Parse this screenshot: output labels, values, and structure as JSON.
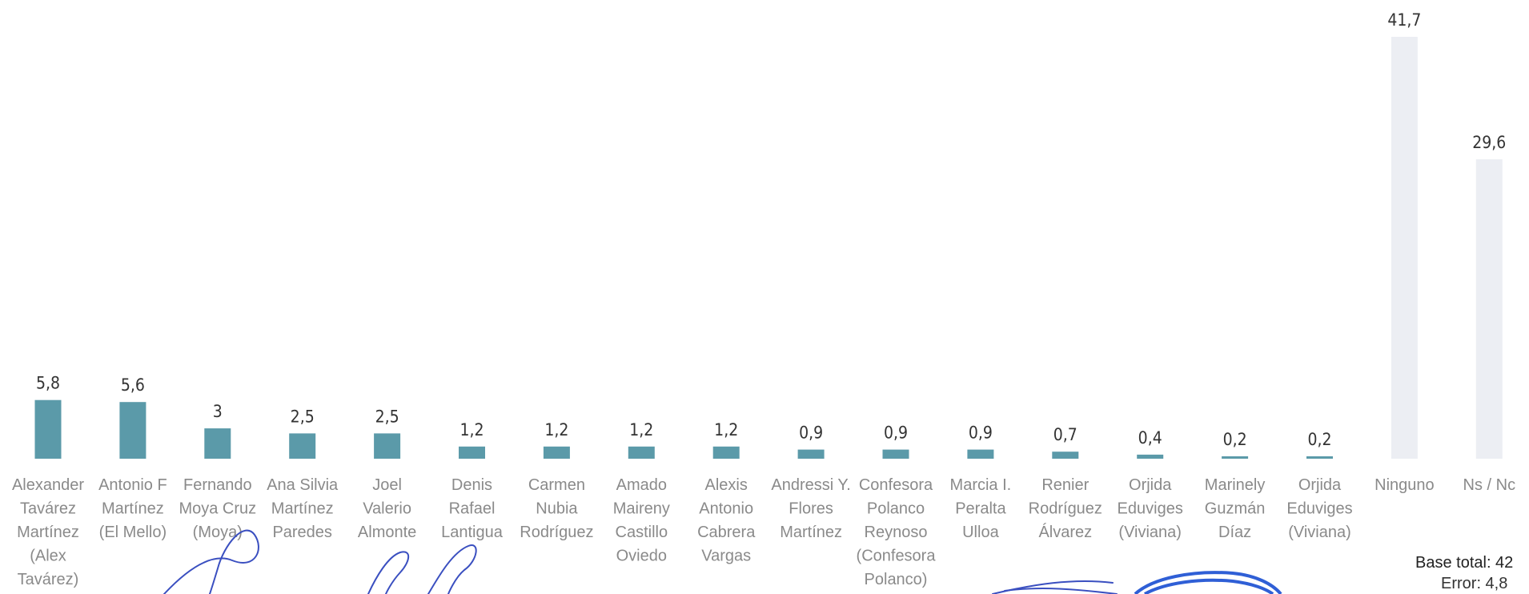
{
  "chart_data": {
    "type": "bar",
    "categories": [
      "Alexander Tavárez Martínez (Alex Tavárez)",
      "Antonio F Martínez (El Mello)",
      "Fernando Moya Cruz (Moya)",
      "Ana Silvia Martínez Paredes",
      "Joel Valerio Almonte",
      "Denis Rafael Lantigua",
      "Carmen Nubia Rodríguez",
      "Amado Maireny Castillo Oviedo",
      "Alexis Antonio Cabrera Vargas",
      "Andressi Y. Flores Martínez",
      "Confesora Polanco Reynoso (Confesora Polanco)",
      "Marcia I. Peralta Ulloa",
      "Renier Rodríguez Álvarez",
      "Orjida Eduviges (Viviana)",
      "Marinely Guzmán Díaz",
      "Orjida Eduviges (Viviana)",
      "Ninguno",
      "Ns / Nc"
    ],
    "category_lines": [
      [
        "Alexander",
        "Tavárez",
        "Martínez",
        "(Alex",
        "Tavárez)"
      ],
      [
        "Antonio F",
        "Martínez",
        "(El Mello)"
      ],
      [
        "Fernando",
        "Moya Cruz",
        "(Moya)"
      ],
      [
        "Ana Silvia",
        "Martínez",
        "Paredes"
      ],
      [
        "Joel",
        "Valerio",
        "Almonte"
      ],
      [
        "Denis",
        "Rafael",
        "Lantigua"
      ],
      [
        "Carmen",
        "Nubia",
        "Rodríguez"
      ],
      [
        "Amado",
        "Maireny",
        "Castillo",
        "Oviedo"
      ],
      [
        "Alexis",
        "Antonio",
        "Cabrera",
        "Vargas"
      ],
      [
        "Andressi Y.",
        "Flores",
        "Martínez"
      ],
      [
        "Confesora",
        "Polanco",
        "Reynoso",
        "(Confesora",
        "Polanco)"
      ],
      [
        "Marcia I.",
        "Peralta",
        "Ulloa"
      ],
      [
        "Renier",
        "Rodríguez",
        "Álvarez"
      ],
      [
        "Orjida",
        "Eduviges",
        "(Viviana)"
      ],
      [
        "Marinely",
        "Guzmán",
        "Díaz"
      ],
      [
        "Orjida",
        "Eduviges",
        "(Viviana)"
      ],
      [
        "Ninguno"
      ],
      [
        "Ns / Nc"
      ]
    ],
    "values": [
      5.8,
      5.6,
      3,
      2.5,
      2.5,
      1.2,
      1.2,
      1.2,
      1.2,
      0.9,
      0.9,
      0.9,
      0.7,
      0.4,
      0.2,
      0.2,
      41.7,
      29.6
    ],
    "value_labels": [
      "5,8",
      "5,6",
      "3",
      "2,5",
      "2,5",
      "1,2",
      "1,2",
      "1,2",
      "1,2",
      "0,9",
      "0,9",
      "0,9",
      "0,7",
      "0,4",
      "0,2",
      "0,2",
      "41,7",
      "29,6"
    ],
    "ylim": [
      0,
      41.7
    ],
    "title": "",
    "xlabel": "",
    "ylabel": "",
    "grid": false,
    "colors": {
      "bar": "#5b9aa9",
      "bar_muted": "#eceef3",
      "value_text": "#333333",
      "category_text": "#8a8a8a"
    }
  },
  "note": {
    "base_label": "Base total: 42",
    "error_label": "Error: 4,8"
  }
}
